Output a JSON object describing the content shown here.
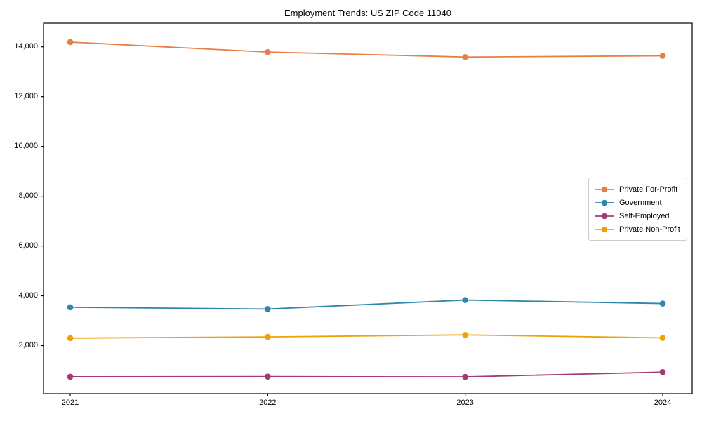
{
  "page": {
    "title": "Employment Trends: US ZIP Code 11040"
  },
  "chart_data": {
    "type": "line",
    "title": "Employment Trends: US ZIP Code 11040",
    "categories": [
      "2021",
      "2022",
      "2023",
      "2024"
    ],
    "series": [
      {
        "name": "Private For-Profit",
        "color": "#E87D45",
        "values": [
          14190,
          13790,
          13590,
          13640
        ]
      },
      {
        "name": "Government",
        "color": "#2E86AB",
        "values": [
          3540,
          3470,
          3830,
          3690
        ]
      },
      {
        "name": "Self-Employed",
        "color": "#A23B72",
        "values": [
          750,
          755,
          745,
          935
        ]
      },
      {
        "name": "Private Non-Profit",
        "color": "#F2A104",
        "values": [
          2300,
          2350,
          2430,
          2310
        ]
      }
    ],
    "xlabel": "",
    "ylabel": "",
    "ylim": [
      70,
      14950
    ],
    "yticks": [
      {
        "value": 2000,
        "label": "2,000"
      },
      {
        "value": 4000,
        "label": "4,000"
      },
      {
        "value": 6000,
        "label": "6,000"
      },
      {
        "value": 8000,
        "label": "8,000"
      },
      {
        "value": 10000,
        "label": "10,000"
      },
      {
        "value": 12000,
        "label": "12,000"
      },
      {
        "value": 14000,
        "label": "14,000"
      }
    ],
    "grid": false,
    "legend_position": "middle-right",
    "marker": "circle",
    "frame": true,
    "axis_color": "#000000"
  }
}
